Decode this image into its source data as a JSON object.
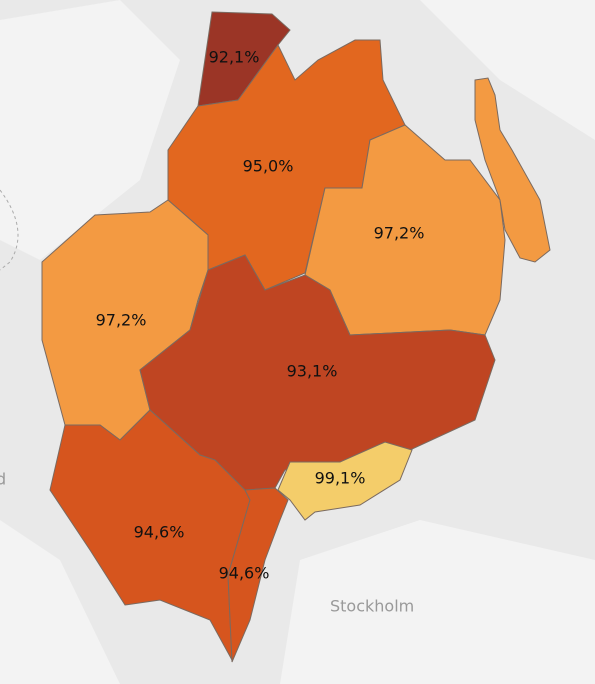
{
  "map": {
    "regions": [
      {
        "value": 92.1,
        "label": "92,1%",
        "color": "#9b3526"
      },
      {
        "value": 95.0,
        "label": "95,0%",
        "color": "#e2671f"
      },
      {
        "value": 97.2,
        "label": "97,2%",
        "color": "#f39a42"
      },
      {
        "value": 97.2,
        "label": "97,2%",
        "color": "#f39a42"
      },
      {
        "value": 93.1,
        "label": "93,1%",
        "color": "#bf4522"
      },
      {
        "value": 99.1,
        "label": "99,1%",
        "color": "#f4cd6a"
      },
      {
        "value": 94.6,
        "label": "94,6%",
        "color": "#d6551e"
      },
      {
        "value": 94.6,
        "label": "94,6%",
        "color": "#d6551e"
      }
    ],
    "place_labels": [
      "Stockholm",
      "d"
    ]
  }
}
